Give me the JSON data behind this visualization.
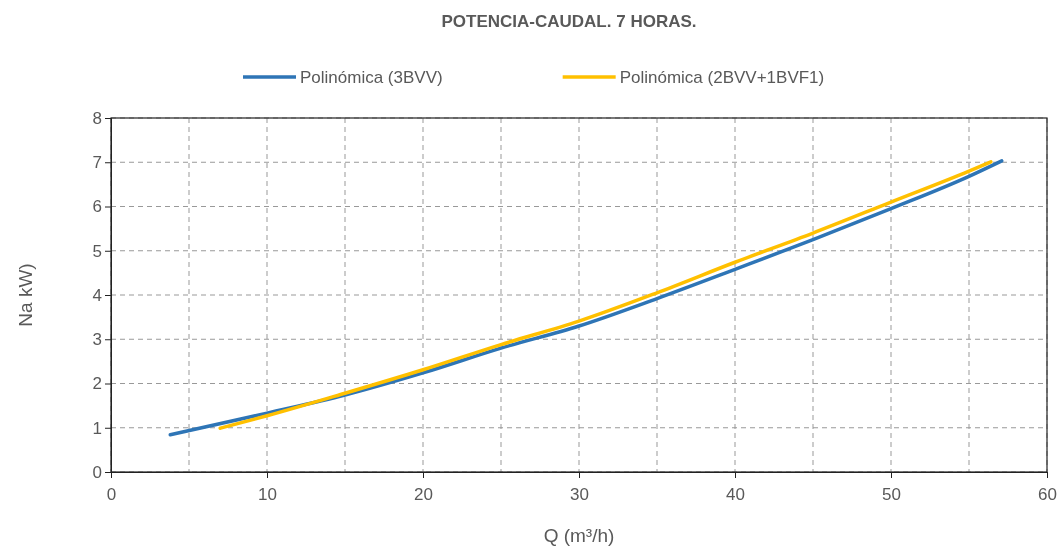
{
  "chart_data": {
    "type": "line",
    "title": "POTENCIA-CAUDAL. 7 HORAS.",
    "xlabel": "Q (m³/h)",
    "ylabel": "Na kW)",
    "xlim": [
      0,
      60
    ],
    "xticks": [
      0,
      10,
      20,
      30,
      40,
      50,
      60
    ],
    "ylim": [
      0,
      8
    ],
    "yticks": [
      0,
      1,
      2,
      3,
      4,
      5,
      6,
      7,
      8
    ],
    "grid": true,
    "legend": "top",
    "marker": "none",
    "line_style": "solid",
    "series": [
      {
        "name": "Polinómica (3BVV)",
        "color": "#2e75b6",
        "x": [
          3.8,
          10,
          15,
          20,
          25,
          30,
          35,
          40,
          45,
          50,
          55,
          57.1
        ],
        "values": [
          0.84,
          1.33,
          1.74,
          2.24,
          2.8,
          3.3,
          3.92,
          4.58,
          5.25,
          5.95,
          6.68,
          7.03
        ]
      },
      {
        "name": "Polinómica (2BVV+1BVF1)",
        "color": "#ffc000",
        "x": [
          7,
          10,
          15,
          20,
          25,
          30,
          35,
          40,
          45,
          50,
          55,
          56.4
        ],
        "values": [
          0.99,
          1.27,
          1.78,
          2.31,
          2.88,
          3.41,
          4.05,
          4.74,
          5.4,
          6.1,
          6.8,
          7.01
        ]
      }
    ]
  }
}
